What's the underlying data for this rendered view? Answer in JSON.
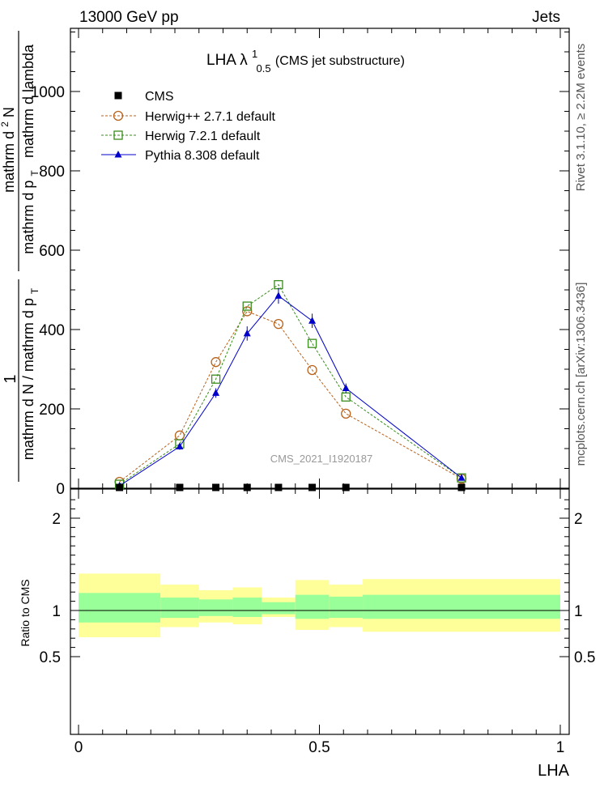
{
  "header": {
    "left": "13000 GeV pp",
    "right": "Jets"
  },
  "side_labels": {
    "rivet": "Rivet 3.1.10, ≥ 2.2M events",
    "mcplots": "mcplots.cern.ch [arXiv:1306.3436]"
  },
  "main_plot": {
    "title_main": "LHA λ",
    "title_sup": "1",
    "title_sub": "0.5",
    "title_rest": " (CMS jet substructure)",
    "watermark": "CMS_2021_I1920187",
    "ylabel_left": "1",
    "ylabel_line1": "mathrm d N / mathrm d p",
    "ylabel_line1_sub": "T",
    "ylabel_line2": "mathrm d",
    "ylabel_line2_sup": "2",
    "ylabel_line2_end": "N",
    "ylabel_line3": "mathrm d p",
    "ylabel_line3_sub": "T",
    "ylabel_line4": "mathrm d lambda"
  },
  "ratio_plot": {
    "ylabel": "Ratio to CMS",
    "xlabel": "LHA"
  },
  "chart_data": [
    {
      "type": "line",
      "xlim": [
        -0.02,
        1.02
      ],
      "ylim": [
        0,
        1160
      ],
      "yticks": [
        0,
        200,
        400,
        600,
        800,
        1000
      ],
      "ytick_labels": [
        "0",
        "200",
        "400",
        "600",
        "800",
        "1000"
      ],
      "grid": false,
      "legend_position": "top-left",
      "series": [
        {
          "name": "CMS",
          "marker": "square-filled",
          "color": "#000000",
          "x": [
            0.085,
            0.21,
            0.285,
            0.35,
            0.415,
            0.485,
            0.555,
            0.795
          ],
          "y": [
            2,
            2,
            2,
            2,
            2,
            2,
            2,
            2
          ]
        },
        {
          "name": "Herwig++ 2.7.1 default",
          "marker": "circle-open",
          "color": "#b8621b",
          "dashed": true,
          "x": [
            0.085,
            0.21,
            0.285,
            0.35,
            0.415,
            0.485,
            0.555,
            0.795
          ],
          "y": [
            16,
            133,
            318,
            446,
            414,
            298,
            188,
            24
          ]
        },
        {
          "name": "Herwig 7.2.1 default",
          "marker": "square-open",
          "color": "#3a8c1e",
          "dashed": true,
          "x": [
            0.085,
            0.21,
            0.285,
            0.35,
            0.415,
            0.485,
            0.555,
            0.795
          ],
          "y": [
            10,
            112,
            275,
            459,
            513,
            365,
            230,
            26
          ]
        },
        {
          "name": "Pythia 8.308 default",
          "marker": "triangle-filled",
          "color": "#0000cc",
          "dashed": false,
          "x": [
            0.085,
            0.21,
            0.285,
            0.35,
            0.415,
            0.485,
            0.555,
            0.795
          ],
          "y": [
            6,
            105,
            240,
            390,
            485,
            422,
            252,
            26
          ],
          "err": [
            4,
            8,
            12,
            18,
            20,
            18,
            12,
            6
          ]
        }
      ]
    },
    {
      "type": "area",
      "xlim": [
        -0.02,
        1.02
      ],
      "ylim": [
        0.4,
        2.3
      ],
      "yticks": [
        0.5,
        1,
        2
      ],
      "ytick_labels": [
        "0.5",
        "1",
        "2"
      ],
      "xticks": [
        0,
        0.5,
        1
      ],
      "xtick_labels": [
        "0",
        "0.5",
        "1"
      ],
      "reference_line": 1,
      "bins": [
        {
          "lo": 0.0,
          "hi": 0.17,
          "inner": [
            0.87,
            1.19
          ],
          "outer": [
            0.71,
            1.4
          ]
        },
        {
          "lo": 0.17,
          "hi": 0.25,
          "inner": [
            0.92,
            1.14
          ],
          "outer": [
            0.82,
            1.28
          ]
        },
        {
          "lo": 0.25,
          "hi": 0.32,
          "inner": [
            0.94,
            1.12
          ],
          "outer": [
            0.87,
            1.22
          ]
        },
        {
          "lo": 0.32,
          "hi": 0.38,
          "inner": [
            0.93,
            1.14
          ],
          "outer": [
            0.85,
            1.25
          ]
        },
        {
          "lo": 0.38,
          "hi": 0.45,
          "inner": [
            0.96,
            1.09
          ],
          "outer": [
            0.93,
            1.14
          ]
        },
        {
          "lo": 0.45,
          "hi": 0.52,
          "inner": [
            0.91,
            1.17
          ],
          "outer": [
            0.79,
            1.33
          ]
        },
        {
          "lo": 0.52,
          "hi": 0.59,
          "inner": [
            0.92,
            1.15
          ],
          "outer": [
            0.82,
            1.28
          ]
        },
        {
          "lo": 0.59,
          "hi": 1.0,
          "inner": [
            0.91,
            1.17
          ],
          "outer": [
            0.77,
            1.34
          ]
        }
      ],
      "colors": {
        "inner": "#99ff99",
        "outer": "#ffff99"
      }
    }
  ]
}
